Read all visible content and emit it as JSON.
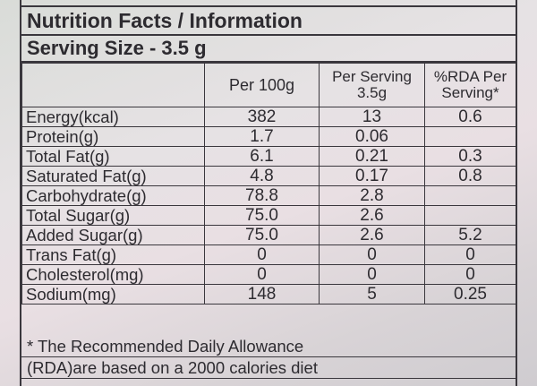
{
  "label": {
    "title": "Nutrition Facts / Information",
    "serving_size": "Serving Size  - 3.5 g",
    "headers": {
      "blank": "",
      "per100": "Per 100g",
      "perServing_line1": "Per Serving",
      "perServing_line2": "3.5g",
      "rda_line1": "%RDA Per",
      "rda_line2": "Serving*"
    },
    "rows": [
      {
        "name": "Energy(kcal)",
        "per100": "382",
        "perServing": "13",
        "rda": "0.6"
      },
      {
        "name": "Protein(g)",
        "per100": "1.7",
        "perServing": "0.06",
        "rda": ""
      },
      {
        "name": "Total Fat(g)",
        "per100": "6.1",
        "perServing": "0.21",
        "rda": "0.3"
      },
      {
        "name": "Saturated Fat(g)",
        "per100": "4.8",
        "perServing": "0.17",
        "rda": "0.8"
      },
      {
        "name": "Carbohydrate(g)",
        "per100": "78.8",
        "perServing": "2.8",
        "rda": ""
      },
      {
        "name": "Total Sugar(g)",
        "per100": "75.0",
        "perServing": "2.6",
        "rda": ""
      },
      {
        "name": "Added Sugar(g)",
        "per100": "75.0",
        "perServing": "2.6",
        "rda": "5.2"
      },
      {
        "name": "Trans Fat(g)",
        "per100": "0",
        "perServing": "0",
        "rda": "0"
      },
      {
        "name": "Cholesterol(mg)",
        "per100": "0",
        "perServing": "0",
        "rda": "0"
      },
      {
        "name": "Sodium(mg)",
        "per100": "148",
        "perServing": "5",
        "rda": "0.25"
      }
    ],
    "footnote_line1": "* The Recommended Daily Allowance",
    "footnote_line2": "(RDA)are based on a 2000 calories diet"
  }
}
